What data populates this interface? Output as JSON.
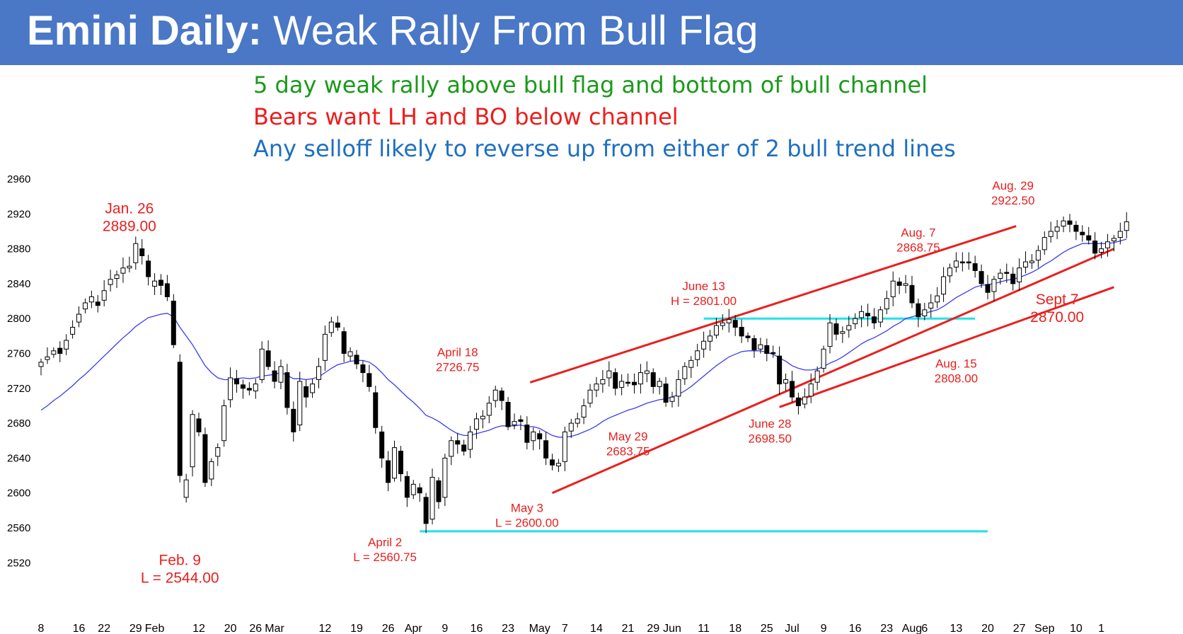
{
  "title": {
    "bold": "Emini Daily:",
    "rest": " Weak Rally From Bull Flag"
  },
  "subtitles": [
    {
      "text": "5 day weak rally above bull flag and bottom of bull channel",
      "color": "#1a9a1a"
    },
    {
      "text": "Bears want LH and BO below channel",
      "color": "#ee1c1c"
    },
    {
      "text": "Any selloff likely to reverse up from either of 2 bull trend lines",
      "color": "#1f6fc0"
    }
  ],
  "colors": {
    "header": "#4a77c6",
    "annotation": "#e8201e",
    "trendline": "#e8201e",
    "support": "#22e0e8",
    "ema": "#3c3cf0",
    "candle": "#000000"
  },
  "chart_data": {
    "type": "candlestick",
    "ylim": [
      2510,
      2970
    ],
    "yticks": [
      2520,
      2560,
      2600,
      2640,
      2680,
      2720,
      2760,
      2800,
      2840,
      2880,
      2920,
      2960
    ],
    "xticks": [
      {
        "label": "8",
        "bar": 0
      },
      {
        "label": "16",
        "bar": 6
      },
      {
        "label": "22",
        "bar": 10
      },
      {
        "label": "29",
        "bar": 15
      },
      {
        "label": "Feb",
        "bar": 18
      },
      {
        "label": "12",
        "bar": 25
      },
      {
        "label": "20",
        "bar": 30
      },
      {
        "label": "26",
        "bar": 34
      },
      {
        "label": "Mar",
        "bar": 37
      },
      {
        "label": "12",
        "bar": 45
      },
      {
        "label": "19",
        "bar": 50
      },
      {
        "label": "26",
        "bar": 55
      },
      {
        "label": "Apr",
        "bar": 59
      },
      {
        "label": "9",
        "bar": 64
      },
      {
        "label": "16",
        "bar": 69
      },
      {
        "label": "23",
        "bar": 74
      },
      {
        "label": "May",
        "bar": 79
      },
      {
        "label": "7",
        "bar": 83
      },
      {
        "label": "14",
        "bar": 88
      },
      {
        "label": "21",
        "bar": 93
      },
      {
        "label": "29",
        "bar": 97
      },
      {
        "label": "Jun",
        "bar": 100
      },
      {
        "label": "11",
        "bar": 105
      },
      {
        "label": "18",
        "bar": 110
      },
      {
        "label": "25",
        "bar": 115
      },
      {
        "label": "Jul",
        "bar": 119
      },
      {
        "label": "9",
        "bar": 124
      },
      {
        "label": "16",
        "bar": 129
      },
      {
        "label": "23",
        "bar": 134
      },
      {
        "label": "Aug",
        "bar": 138
      },
      {
        "label": "6",
        "bar": 140
      },
      {
        "label": "13",
        "bar": 145
      },
      {
        "label": "20",
        "bar": 150
      },
      {
        "label": "27",
        "bar": 155
      },
      {
        "label": "Sep",
        "bar": 159
      },
      {
        "label": "10",
        "bar": 164
      },
      {
        "label": "1",
        "bar": 168
      }
    ],
    "closes": [
      2750,
      2756,
      2763,
      2760,
      2775,
      2790,
      2805,
      2818,
      2825,
      2815,
      2832,
      2845,
      2850,
      2858,
      2860,
      2886,
      2872,
      2848,
      2843,
      2838,
      2825,
      2770,
      2620,
      2615,
      2690,
      2670,
      2612,
      2636,
      2652,
      2700,
      2732,
      2725,
      2720,
      2718,
      2725,
      2765,
      2745,
      2728,
      2745,
      2698,
      2670,
      2728,
      2710,
      2725,
      2745,
      2782,
      2796,
      2790,
      2760,
      2762,
      2748,
      2738,
      2722,
      2675,
      2640,
      2612,
      2652,
      2622,
      2595,
      2610,
      2600,
      2565,
      2618,
      2590,
      2640,
      2660,
      2656,
      2648,
      2670,
      2685,
      2688,
      2703,
      2718,
      2706,
      2676,
      2682,
      2682,
      2658,
      2670,
      2662,
      2640,
      2632,
      2634,
      2670,
      2680,
      2685,
      2700,
      2718,
      2725,
      2730,
      2740,
      2720,
      2728,
      2726,
      2724,
      2738,
      2740,
      2722,
      2728,
      2704,
      2710,
      2730,
      2745,
      2752,
      2763,
      2774,
      2780,
      2792,
      2795,
      2799,
      2790,
      2780,
      2778,
      2764,
      2770,
      2760,
      2760,
      2725,
      2730,
      2710,
      2700,
      2710,
      2725,
      2740,
      2765,
      2795,
      2782,
      2785,
      2792,
      2800,
      2808,
      2803,
      2795,
      2810,
      2823,
      2843,
      2838,
      2840,
      2818,
      2802,
      2810,
      2818,
      2826,
      2848,
      2858,
      2866,
      2864,
      2864,
      2855,
      2840,
      2830,
      2845,
      2852,
      2852,
      2840,
      2858,
      2865,
      2866,
      2878,
      2893,
      2900,
      2905,
      2912,
      2908,
      2900,
      2896,
      2890,
      2875,
      2880,
      2888,
      2892,
      2900,
      2911
    ],
    "open_offsets": [
      -5,
      -3,
      -4,
      6,
      -10,
      -8,
      -9,
      -7,
      -6,
      4,
      -11,
      -6,
      -4,
      -6,
      -2,
      -22,
      8,
      18,
      -6,
      6,
      15,
      50,
      130,
      -20,
      -60,
      15,
      55,
      -20,
      -10,
      -40,
      -25,
      6,
      4,
      2,
      -8,
      -35,
      18,
      12,
      -18,
      40,
      26,
      -50,
      12,
      -10,
      -15,
      -30,
      -12,
      5,
      25,
      -5,
      10,
      9,
      15,
      40,
      30,
      25,
      -35,
      26,
      24,
      -12,
      6,
      30,
      -48,
      24,
      -45,
      -18,
      4,
      7,
      -20,
      -12,
      -3,
      -14,
      -12,
      11,
      28,
      -4,
      2,
      20,
      -10,
      6,
      20,
      6,
      -3,
      -34,
      -9,
      -5,
      -13,
      -15,
      -7,
      -5,
      -8,
      18,
      -7,
      1,
      3,
      -13,
      -3,
      16,
      -6,
      21,
      -5,
      -19,
      -14,
      -8,
      -10,
      -9,
      -6,
      -11,
      -3,
      -4,
      8,
      10,
      2,
      13,
      -5,
      9,
      1,
      32,
      -4,
      18,
      9,
      -8,
      -14,
      -13,
      -22,
      -27,
      12,
      -2,
      -5,
      -6,
      -7,
      3,
      7,
      -14,
      -12,
      -18,
      4,
      -2,
      20,
      15,
      -7,
      -6,
      -7,
      -20,
      -9,
      -7,
      1,
      1,
      8,
      14,
      9,
      -14,
      -6,
      1,
      11,
      -16,
      -6,
      -2,
      -11,
      -14,
      -6,
      -5,
      -6,
      4,
      7,
      3,
      5,
      14,
      -4,
      -7,
      -3,
      -7,
      -10
    ],
    "ema": [
      2695,
      2700,
      2706,
      2711,
      2717,
      2723,
      2730,
      2736,
      2743,
      2750,
      2757,
      2764,
      2771,
      2778,
      2784,
      2791,
      2796,
      2801,
      2803,
      2805,
      2806,
      2802,
      2790,
      2780,
      2770,
      2758,
      2746,
      2738,
      2732,
      2730,
      2730,
      2731,
      2732,
      2731,
      2732,
      2734,
      2735,
      2736,
      2738,
      2735,
      2731,
      2731,
      2730,
      2731,
      2733,
      2738,
      2743,
      2747,
      2749,
      2751,
      2752,
      2752,
      2750,
      2745,
      2738,
      2730,
      2724,
      2717,
      2710,
      2704,
      2697,
      2689,
      2686,
      2682,
      2677,
      2672,
      2668,
      2666,
      2666,
      2668,
      2670,
      2672,
      2675,
      2677,
      2677,
      2677,
      2678,
      2676,
      2676,
      2674,
      2670,
      2666,
      2664,
      2664,
      2665,
      2667,
      2670,
      2673,
      2677,
      2682,
      2686,
      2689,
      2692,
      2695,
      2697,
      2700,
      2703,
      2705,
      2707,
      2708,
      2710,
      2713,
      2717,
      2722,
      2728,
      2734,
      2740,
      2746,
      2751,
      2756,
      2759,
      2762,
      2763,
      2763,
      2763,
      2761,
      2759,
      2755,
      2751,
      2746,
      2743,
      2741,
      2741,
      2742,
      2745,
      2749,
      2752,
      2756,
      2761,
      2766,
      2771,
      2775,
      2778,
      2782,
      2786,
      2791,
      2795,
      2800,
      2802,
      2804,
      2806,
      2808,
      2810,
      2814,
      2819,
      2824,
      2828,
      2832,
      2836,
      2838,
      2839,
      2840,
      2842,
      2844,
      2845,
      2847,
      2850,
      2853,
      2857,
      2862,
      2866,
      2871,
      2876,
      2880,
      2883,
      2886,
      2886,
      2886,
      2886,
      2886,
      2887,
      2889,
      2891
    ]
  },
  "annotations": [
    {
      "lines": [
        "Jan. 26",
        "2889.00"
      ]
    },
    {
      "lines": [
        "Feb. 9",
        "L = 2544.00"
      ]
    },
    {
      "lines": [
        "April 2",
        "L = 2560.75"
      ]
    },
    {
      "lines": [
        "April 18",
        "2726.75"
      ]
    },
    {
      "lines": [
        "May 3",
        "L = 2600.00"
      ]
    },
    {
      "lines": [
        "May 29",
        "2683.75"
      ]
    },
    {
      "lines": [
        "June 13",
        "H = 2801.00"
      ]
    },
    {
      "lines": [
        "June 28",
        "2698.50"
      ]
    },
    {
      "lines": [
        "Aug. 7",
        "2868.75"
      ]
    },
    {
      "lines": [
        "Aug. 15",
        "2808.00"
      ]
    },
    {
      "lines": [
        "Aug. 29",
        "2922.50"
      ]
    },
    {
      "lines": [
        "Sept 7",
        "2870.00"
      ]
    }
  ],
  "trendlines": [
    {
      "from": {
        "bar": 77.5,
        "price": 2726.75
      },
      "to": {
        "bar": 154.5,
        "price": 2906
      }
    },
    {
      "from": {
        "bar": 81,
        "price": 2600
      },
      "to": {
        "bar": 170,
        "price": 2880
      }
    },
    {
      "from": {
        "bar": 117,
        "price": 2698.5
      },
      "to": {
        "bar": 170,
        "price": 2836
      }
    }
  ],
  "support_lines": [
    {
      "from_bar": 60,
      "to_bar": 150,
      "price": 2556
    },
    {
      "from_bar": 105,
      "to_bar": 148,
      "price": 2800
    }
  ]
}
